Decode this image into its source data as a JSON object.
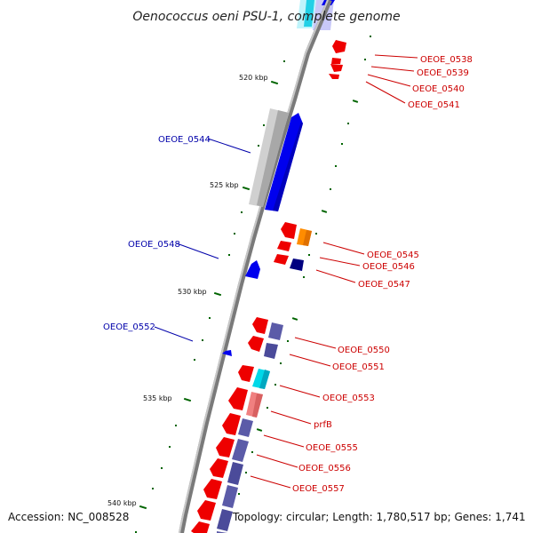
{
  "title": "Oenococcus oeni PSU-1, complete genome",
  "footer": {
    "accession": "Accession: NC_008528",
    "summary": "Topology: circular; Length: 1,780,517 bp; Genes: 1,741"
  },
  "scale_labels": [
    "520 kbp",
    "525 kbp",
    "530 kbp",
    "535 kbp",
    "540 kbp"
  ],
  "colors": {
    "backbone": "#808080",
    "forward_cds": "#0000ee",
    "reverse_cds": "#ee0000",
    "reverse_label": "#cc0000",
    "forward_label": "#0000aa",
    "pseudo_gene": "#b8b8b8",
    "category_orange": "#ff8c00",
    "category_navy": "#000080",
    "category_slate": "#5b5ba8",
    "category_cyan": "#00d8e8",
    "category_pink": "#f08080",
    "tick": "#006400"
  },
  "labels_left": [
    "OEOE_0544",
    "OEOE_0548",
    "OEOE_0552"
  ],
  "labels_right": [
    "OEOE_0538",
    "OEOE_0539",
    "OEOE_0540",
    "OEOE_0541",
    "OEOE_0545",
    "OEOE_0546",
    "OEOE_0547",
    "OEOE_0550",
    "OEOE_0551",
    "OEOE_0553",
    "prfB",
    "OEOE_0555",
    "OEOE_0556",
    "OEOE_0557"
  ]
}
